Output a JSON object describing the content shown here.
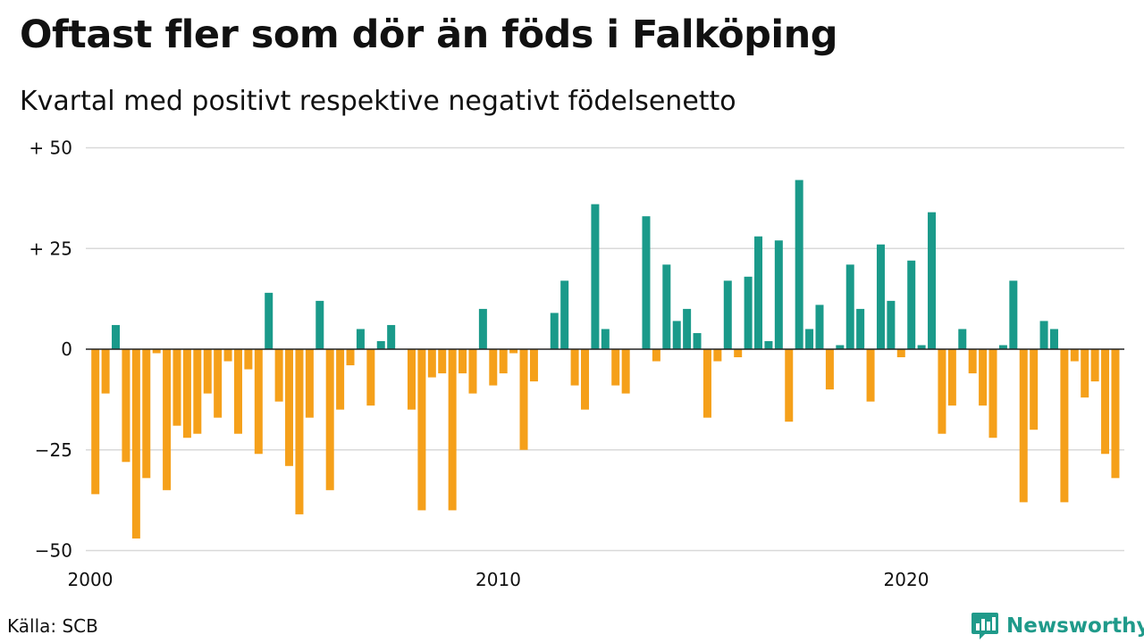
{
  "header": {
    "title": "Oftast fler som dör än föds i Falköping",
    "subtitle": "Kvartal med positivt respektive negativt födelsenetto"
  },
  "footer": {
    "source": "Källa: SCB",
    "brand": "Newsworthy",
    "brand_icon": "newsworthy-chart-bubble-icon"
  },
  "colors": {
    "positive": "#1a9a8a",
    "negative": "#f5a01a",
    "grid": "#d9d9d9",
    "baseline": "#222222",
    "brand": "#1f9a8a"
  },
  "chart_data": {
    "type": "bar",
    "x_start_year": 2000,
    "periods_per_year": 4,
    "ylim": [
      -50,
      50
    ],
    "grid": true,
    "yticks": [
      {
        "value": 50,
        "label": "+ 50"
      },
      {
        "value": 25,
        "label": "+ 25"
      },
      {
        "value": 0,
        "label": "0"
      },
      {
        "value": -25,
        "label": "−25"
      },
      {
        "value": -50,
        "label": "−50"
      }
    ],
    "xticks": [
      {
        "value": 2000,
        "label": "2000"
      },
      {
        "value": 2010,
        "label": "2010"
      },
      {
        "value": 2020,
        "label": "2020"
      }
    ],
    "values": [
      -36,
      -11,
      6,
      -28,
      -47,
      -32,
      -1,
      -35,
      -19,
      -22,
      -21,
      -11,
      -17,
      -3,
      -21,
      -5,
      -26,
      14,
      -13,
      -29,
      -41,
      -17,
      12,
      -35,
      -15,
      -4,
      5,
      -14,
      2,
      6,
      0,
      -15,
      -40,
      -7,
      -6,
      -40,
      -6,
      -11,
      10,
      -9,
      -6,
      -1,
      -25,
      -8,
      0,
      9,
      17,
      -9,
      -15,
      36,
      5,
      -9,
      -11,
      0,
      33,
      -3,
      21,
      7,
      10,
      4,
      -17,
      -3,
      17,
      -2,
      18,
      28,
      2,
      27,
      -18,
      42,
      5,
      11,
      -10,
      1,
      21,
      10,
      -13,
      26,
      12,
      -2,
      22,
      1,
      34,
      -21,
      -14,
      5,
      -6,
      -14,
      -22,
      1,
      17,
      -38,
      -20,
      7,
      5,
      -38,
      -3,
      -12,
      -8,
      -26,
      -32
    ]
  }
}
